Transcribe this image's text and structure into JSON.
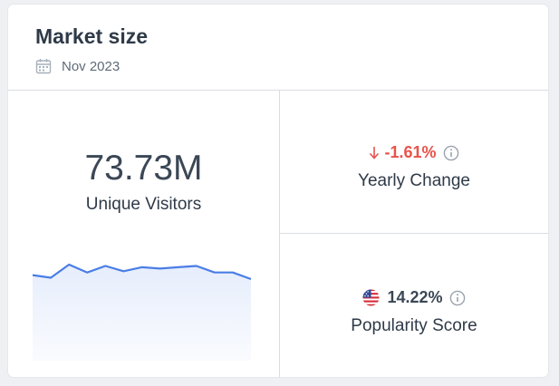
{
  "header": {
    "title": "Market size",
    "date": "Nov 2023"
  },
  "visitors": {
    "value": "73.73M",
    "label": "Unique Visitors",
    "trend": [
      70,
      68,
      78,
      72,
      77,
      73,
      76,
      75,
      76,
      77,
      72,
      72,
      67
    ]
  },
  "yearly_change": {
    "value": "-1.61%",
    "label": "Yearly Change",
    "direction": "down"
  },
  "popularity": {
    "value": "14.22%",
    "label": "Popularity Score",
    "country_icon": "us-flag-icon"
  },
  "colors": {
    "accent": "#4a7ee6",
    "negative": "#e8534a",
    "text": "#2f3a48"
  }
}
